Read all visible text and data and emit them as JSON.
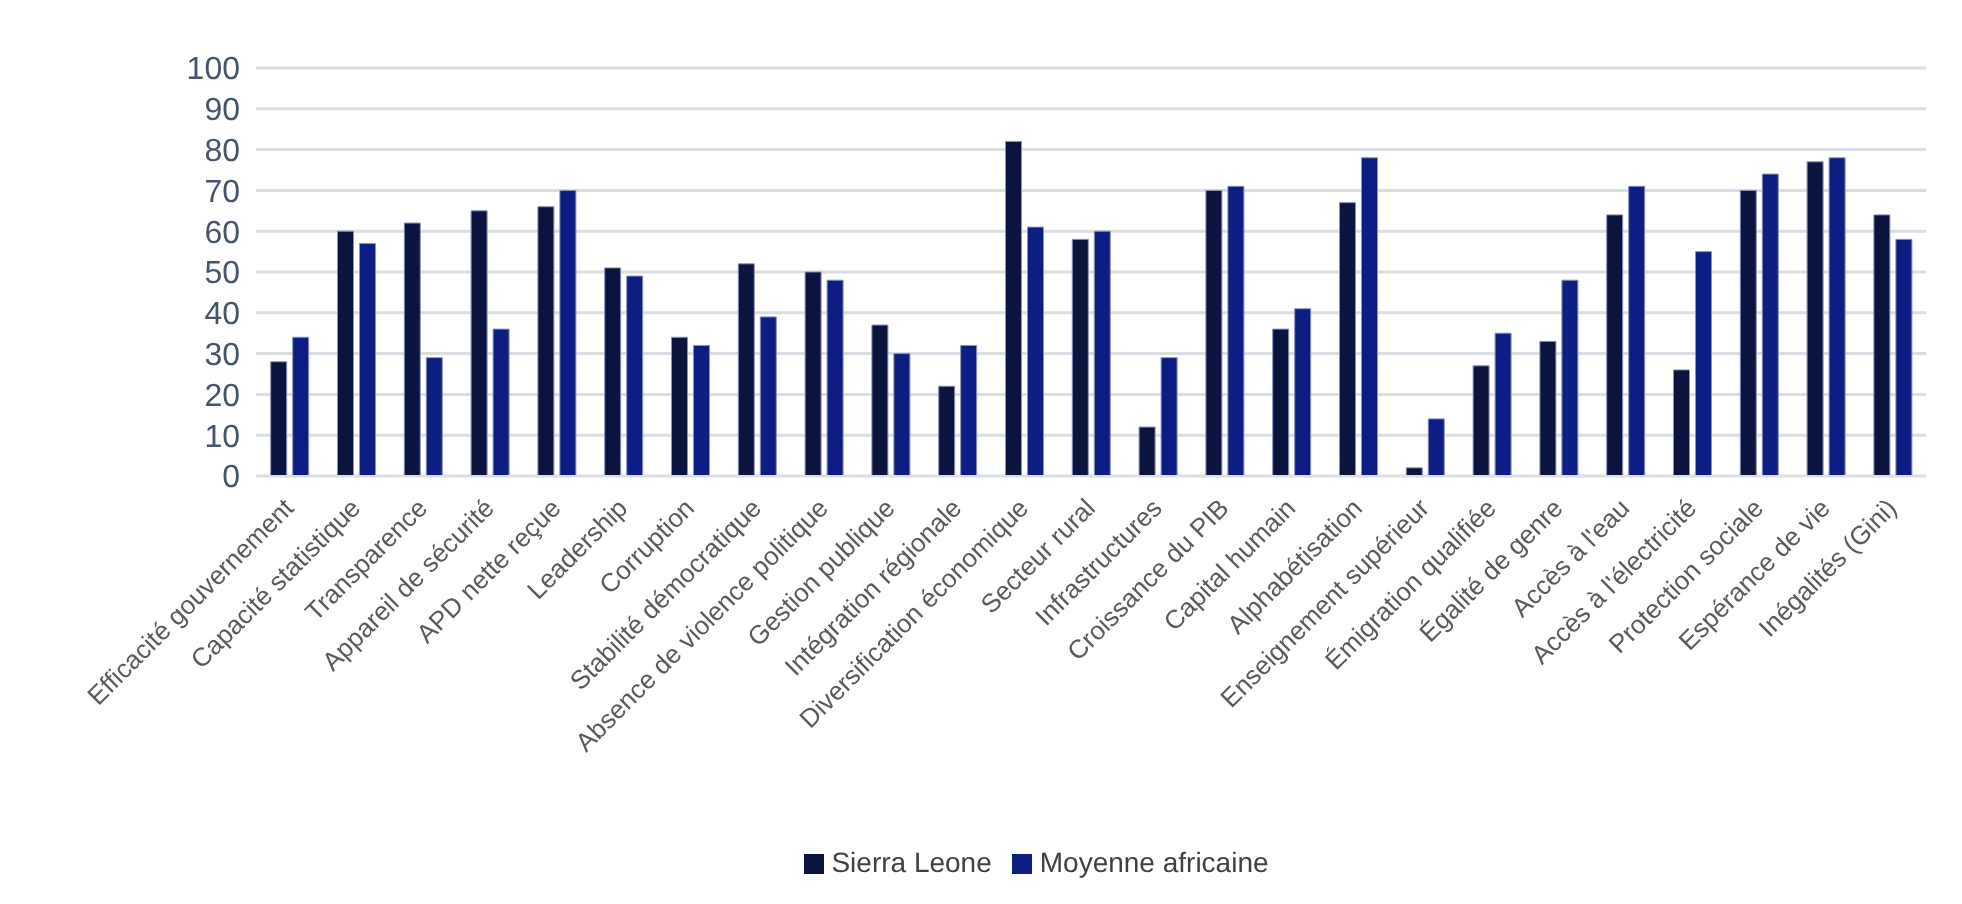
{
  "chart_data": {
    "type": "bar",
    "categories": [
      "Efficacité gouvernement",
      "Capacité statistique",
      "Transparence",
      "Appareil de sécurité",
      "APD nette reçue",
      "Leadership",
      "Corruption",
      "Stabilité démocratique",
      "Absence de violence politique",
      "Gestion publique",
      "Intégration régionale",
      "Diversification économique",
      "Secteur rural",
      "Infrastructures",
      "Croissance du PIB",
      "Capital humain",
      "Alphabétisation",
      "Enseignement supérieur",
      "Émigration qualifiée",
      "Égalité de genre",
      "Accès à l'eau",
      "Accès à l'électricité",
      "Protection sociale",
      "Espérance de vie",
      "Inégalités (Gini)"
    ],
    "series": [
      {
        "name": "Sierra Leone",
        "color": "#0b133f",
        "values": [
          28,
          60,
          62,
          65,
          66,
          51,
          34,
          52,
          50,
          37,
          22,
          82,
          58,
          12,
          70,
          36,
          67,
          2,
          27,
          33,
          64,
          26,
          70,
          77,
          64
        ]
      },
      {
        "name": "Moyenne africaine",
        "color": "#0c1d83",
        "values": [
          34,
          57,
          29,
          36,
          70,
          49,
          32,
          39,
          48,
          30,
          32,
          61,
          60,
          29,
          71,
          41,
          78,
          14,
          35,
          48,
          71,
          55,
          74,
          78,
          58
        ]
      }
    ],
    "ylim": [
      0,
      100
    ],
    "yticks": [
      0,
      10,
      20,
      30,
      40,
      50,
      60,
      70,
      80,
      90,
      100
    ],
    "grid": "y",
    "legend": "bottom"
  }
}
